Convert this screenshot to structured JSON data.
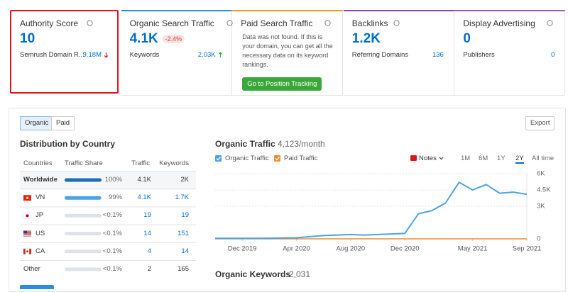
{
  "cards": [
    {
      "title": "Authority Score",
      "value": "10",
      "sub_label": "Semrush Domain R...",
      "sub_value": "9.18M",
      "trend": "down",
      "accent": "#ffffff",
      "selected": true
    },
    {
      "title": "Organic Search Traffic",
      "value": "4.1K",
      "badge": "-2.4%",
      "sub_label": "Keywords",
      "sub_value": "2.03K",
      "trend": "up",
      "accent": "#2b8de0"
    },
    {
      "title": "Paid Search Traffic",
      "message": "Data was not found. If this is your domain, you can get all the necessary data on its keyword rankings.",
      "button": "Go to Position Tracking",
      "accent": "#f39c12"
    },
    {
      "title": "Backlinks",
      "value": "1.2K",
      "sub_label": "Referring Domains",
      "sub_value": "136",
      "accent": "#8e44ad"
    },
    {
      "title": "Display Advertising",
      "value": "0",
      "sub_label": "Publishers",
      "sub_value": "0",
      "accent": "#9b59b6"
    }
  ],
  "tabs": [
    "Organic",
    "Paid"
  ],
  "active_tab": 0,
  "export": "Export",
  "country_table": {
    "title": "Distribution by Country",
    "columns": [
      "Countries",
      "Traffic Share",
      "Traffic",
      "Keywords"
    ],
    "rows": [
      {
        "country": "Worldwide",
        "share": 100,
        "share_label": "100%",
        "traffic": "4.1K",
        "keywords": "2K"
      },
      {
        "country": "VN",
        "share": 99,
        "share_label": "99%",
        "traffic": "4.1K",
        "keywords": "1.7K",
        "flag": "vn"
      },
      {
        "country": "JP",
        "share": 0.05,
        "share_label": "<0.1%",
        "traffic": "19",
        "keywords": "19",
        "flag": "jp"
      },
      {
        "country": "US",
        "share": 0.05,
        "share_label": "<0.1%",
        "traffic": "14",
        "keywords": "151",
        "flag": "us"
      },
      {
        "country": "CA",
        "share": 0.05,
        "share_label": "<0.1%",
        "traffic": "4",
        "keywords": "14",
        "flag": "ca"
      },
      {
        "country": "Other",
        "share": 0.05,
        "share_label": "<0.1%",
        "traffic": "2",
        "keywords": "165"
      }
    ]
  },
  "traffic_chart": {
    "type": "line",
    "title": "Organic Traffic",
    "subtitle": "4,123/month",
    "notes": "Notes",
    "ranges": [
      "1M",
      "6M",
      "1Y",
      "2Y",
      "All time"
    ],
    "active_range": 3,
    "categories": [
      null,
      null,
      "Dec 2019",
      null,
      null,
      null,
      "Apr 2020",
      null,
      null,
      null,
      "Aug 2020",
      null,
      null,
      null,
      "Dec 2020",
      null,
      null,
      null,
      null,
      "May 2021",
      null,
      null,
      null,
      "Sep 2021"
    ],
    "series": [
      {
        "name": "Organic Traffic",
        "color": "#4aa3e8",
        "values": [
          50,
          50,
          50,
          50,
          60,
          80,
          100,
          200,
          300,
          350,
          400,
          350,
          400,
          450,
          500,
          2300,
          2600,
          3300,
          5200,
          4500,
          5000,
          4200,
          4300,
          4100
        ]
      },
      {
        "name": "Paid Traffic",
        "color": "#f28b30",
        "values": [
          0,
          0,
          0,
          0,
          0,
          0,
          0,
          0,
          0,
          0,
          0,
          0,
          0,
          0,
          0,
          0,
          0,
          0,
          0,
          0,
          0,
          0,
          0,
          0
        ]
      }
    ],
    "ylim": [
      0,
      6000
    ],
    "yticks": [
      0,
      {
        "value": 3000,
        "label": "3K"
      },
      {
        "value": 4500,
        "label": "4.5K"
      },
      {
        "value": 6000,
        "label": "6K"
      }
    ],
    "grid": true
  },
  "keywords_title": "Organic Keywords",
  "keywords_count": "2,031"
}
